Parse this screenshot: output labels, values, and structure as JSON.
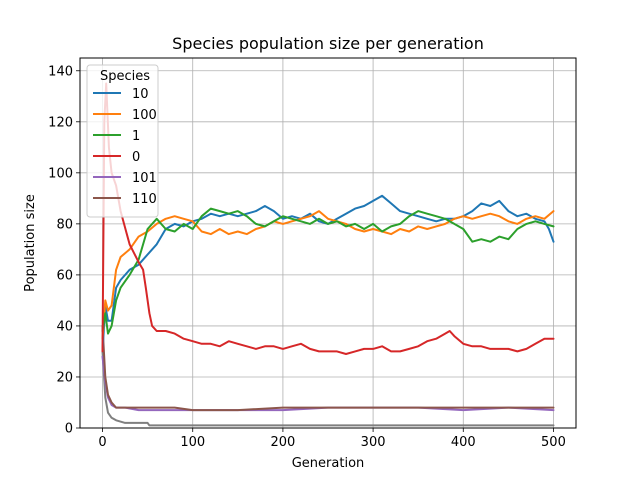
{
  "chart_data": {
    "type": "line",
    "title": "Species population size per generation",
    "xlabel": "Generation",
    "ylabel": "Population size",
    "xlim": [
      -25,
      525
    ],
    "ylim": [
      0,
      145
    ],
    "x_ticks": [
      0,
      100,
      200,
      300,
      400,
      500
    ],
    "y_ticks": [
      0,
      20,
      40,
      60,
      80,
      100,
      120,
      140
    ],
    "grid": true,
    "legend": {
      "title": "Species",
      "placement": "top-left"
    },
    "series": [
      {
        "name": "10",
        "color": "#1f77b4",
        "points": [
          [
            0,
            30
          ],
          [
            3,
            48
          ],
          [
            6,
            42
          ],
          [
            10,
            42
          ],
          [
            15,
            55
          ],
          [
            20,
            58
          ],
          [
            30,
            62
          ],
          [
            40,
            64
          ],
          [
            50,
            68
          ],
          [
            60,
            72
          ],
          [
            70,
            78
          ],
          [
            80,
            80
          ],
          [
            90,
            79
          ],
          [
            100,
            81
          ],
          [
            110,
            82
          ],
          [
            120,
            84
          ],
          [
            130,
            83
          ],
          [
            140,
            84
          ],
          [
            150,
            83
          ],
          [
            160,
            84
          ],
          [
            170,
            85
          ],
          [
            180,
            87
          ],
          [
            190,
            85
          ],
          [
            200,
            82
          ],
          [
            210,
            83
          ],
          [
            220,
            82
          ],
          [
            230,
            84
          ],
          [
            240,
            81
          ],
          [
            250,
            80
          ],
          [
            260,
            82
          ],
          [
            270,
            84
          ],
          [
            280,
            86
          ],
          [
            290,
            87
          ],
          [
            300,
            89
          ],
          [
            310,
            91
          ],
          [
            320,
            88
          ],
          [
            330,
            85
          ],
          [
            340,
            84
          ],
          [
            350,
            83
          ],
          [
            360,
            82
          ],
          [
            370,
            81
          ],
          [
            380,
            82
          ],
          [
            390,
            82
          ],
          [
            400,
            83
          ],
          [
            410,
            85
          ],
          [
            420,
            88
          ],
          [
            430,
            87
          ],
          [
            440,
            89
          ],
          [
            450,
            85
          ],
          [
            460,
            83
          ],
          [
            470,
            84
          ],
          [
            480,
            82
          ],
          [
            490,
            81
          ],
          [
            495,
            78
          ],
          [
            500,
            73
          ]
        ]
      },
      {
        "name": "100",
        "color": "#ff7f0e",
        "points": [
          [
            0,
            35
          ],
          [
            3,
            50
          ],
          [
            6,
            46
          ],
          [
            10,
            48
          ],
          [
            15,
            62
          ],
          [
            20,
            67
          ],
          [
            30,
            70
          ],
          [
            40,
            75
          ],
          [
            50,
            77
          ],
          [
            60,
            80
          ],
          [
            70,
            82
          ],
          [
            80,
            83
          ],
          [
            90,
            82
          ],
          [
            100,
            81
          ],
          [
            110,
            77
          ],
          [
            120,
            76
          ],
          [
            130,
            78
          ],
          [
            140,
            76
          ],
          [
            150,
            77
          ],
          [
            160,
            76
          ],
          [
            170,
            78
          ],
          [
            180,
            79
          ],
          [
            190,
            81
          ],
          [
            200,
            80
          ],
          [
            210,
            81
          ],
          [
            220,
            82
          ],
          [
            230,
            83
          ],
          [
            240,
            85
          ],
          [
            250,
            82
          ],
          [
            260,
            81
          ],
          [
            270,
            80
          ],
          [
            280,
            78
          ],
          [
            290,
            77
          ],
          [
            300,
            78
          ],
          [
            310,
            77
          ],
          [
            320,
            76
          ],
          [
            330,
            78
          ],
          [
            340,
            77
          ],
          [
            350,
            79
          ],
          [
            360,
            78
          ],
          [
            370,
            79
          ],
          [
            380,
            80
          ],
          [
            390,
            82
          ],
          [
            400,
            83
          ],
          [
            410,
            82
          ],
          [
            420,
            83
          ],
          [
            430,
            84
          ],
          [
            440,
            83
          ],
          [
            450,
            81
          ],
          [
            460,
            80
          ],
          [
            470,
            82
          ],
          [
            480,
            83
          ],
          [
            490,
            82
          ],
          [
            500,
            85
          ]
        ]
      },
      {
        "name": "1",
        "color": "#2ca02c",
        "points": [
          [
            0,
            38
          ],
          [
            3,
            45
          ],
          [
            6,
            37
          ],
          [
            10,
            40
          ],
          [
            15,
            50
          ],
          [
            20,
            55
          ],
          [
            30,
            60
          ],
          [
            40,
            66
          ],
          [
            50,
            78
          ],
          [
            60,
            82
          ],
          [
            70,
            78
          ],
          [
            80,
            77
          ],
          [
            90,
            80
          ],
          [
            100,
            78
          ],
          [
            110,
            83
          ],
          [
            120,
            86
          ],
          [
            130,
            85
          ],
          [
            140,
            84
          ],
          [
            150,
            85
          ],
          [
            160,
            83
          ],
          [
            170,
            80
          ],
          [
            180,
            79
          ],
          [
            190,
            81
          ],
          [
            200,
            83
          ],
          [
            210,
            82
          ],
          [
            220,
            81
          ],
          [
            230,
            80
          ],
          [
            240,
            82
          ],
          [
            250,
            80
          ],
          [
            260,
            81
          ],
          [
            270,
            79
          ],
          [
            280,
            80
          ],
          [
            290,
            78
          ],
          [
            300,
            80
          ],
          [
            310,
            77
          ],
          [
            320,
            79
          ],
          [
            330,
            80
          ],
          [
            340,
            83
          ],
          [
            350,
            85
          ],
          [
            360,
            84
          ],
          [
            370,
            83
          ],
          [
            380,
            82
          ],
          [
            390,
            80
          ],
          [
            400,
            78
          ],
          [
            410,
            73
          ],
          [
            420,
            74
          ],
          [
            430,
            73
          ],
          [
            440,
            75
          ],
          [
            450,
            74
          ],
          [
            460,
            78
          ],
          [
            470,
            80
          ],
          [
            480,
            81
          ],
          [
            490,
            80
          ],
          [
            500,
            79
          ]
        ]
      },
      {
        "name": "0",
        "color": "#d62728",
        "points": [
          [
            0,
            30
          ],
          [
            2,
            120
          ],
          [
            4,
            135
          ],
          [
            7,
            110
          ],
          [
            10,
            100
          ],
          [
            15,
            95
          ],
          [
            20,
            85
          ],
          [
            30,
            72
          ],
          [
            40,
            65
          ],
          [
            45,
            62
          ],
          [
            48,
            55
          ],
          [
            52,
            45
          ],
          [
            55,
            40
          ],
          [
            60,
            38
          ],
          [
            70,
            38
          ],
          [
            80,
            37
          ],
          [
            90,
            35
          ],
          [
            100,
            34
          ],
          [
            110,
            33
          ],
          [
            120,
            33
          ],
          [
            130,
            32
          ],
          [
            140,
            34
          ],
          [
            150,
            33
          ],
          [
            160,
            32
          ],
          [
            170,
            31
          ],
          [
            180,
            32
          ],
          [
            190,
            32
          ],
          [
            200,
            31
          ],
          [
            210,
            32
          ],
          [
            220,
            33
          ],
          [
            230,
            31
          ],
          [
            240,
            30
          ],
          [
            250,
            30
          ],
          [
            260,
            30
          ],
          [
            270,
            29
          ],
          [
            280,
            30
          ],
          [
            290,
            31
          ],
          [
            300,
            31
          ],
          [
            310,
            32
          ],
          [
            320,
            30
          ],
          [
            330,
            30
          ],
          [
            340,
            31
          ],
          [
            350,
            32
          ],
          [
            360,
            34
          ],
          [
            370,
            35
          ],
          [
            380,
            37
          ],
          [
            385,
            38
          ],
          [
            390,
            36
          ],
          [
            400,
            33
          ],
          [
            410,
            32
          ],
          [
            420,
            32
          ],
          [
            430,
            31
          ],
          [
            440,
            31
          ],
          [
            450,
            31
          ],
          [
            460,
            30
          ],
          [
            470,
            31
          ],
          [
            480,
            33
          ],
          [
            490,
            35
          ],
          [
            500,
            35
          ]
        ]
      },
      {
        "name": "101",
        "color": "#9467bd",
        "points": [
          [
            0,
            28
          ],
          [
            3,
            18
          ],
          [
            6,
            12
          ],
          [
            10,
            9
          ],
          [
            15,
            8
          ],
          [
            25,
            8
          ],
          [
            40,
            7
          ],
          [
            60,
            7
          ],
          [
            80,
            7
          ],
          [
            100,
            7
          ],
          [
            150,
            7
          ],
          [
            200,
            7
          ],
          [
            250,
            8
          ],
          [
            300,
            8
          ],
          [
            350,
            8
          ],
          [
            400,
            7
          ],
          [
            450,
            8
          ],
          [
            500,
            7
          ]
        ]
      },
      {
        "name": "110",
        "color": "#8c564b",
        "points": [
          [
            0,
            40
          ],
          [
            3,
            20
          ],
          [
            6,
            13
          ],
          [
            10,
            10
          ],
          [
            15,
            8
          ],
          [
            25,
            8
          ],
          [
            40,
            8
          ],
          [
            60,
            8
          ],
          [
            80,
            8
          ],
          [
            100,
            7
          ],
          [
            150,
            7
          ],
          [
            200,
            8
          ],
          [
            250,
            8
          ],
          [
            300,
            8
          ],
          [
            350,
            8
          ],
          [
            400,
            8
          ],
          [
            450,
            8
          ],
          [
            500,
            8
          ]
        ]
      },
      {
        "name": "",
        "color": "#7f7f7f",
        "points": [
          [
            0,
            30
          ],
          [
            3,
            12
          ],
          [
            6,
            6
          ],
          [
            10,
            4
          ],
          [
            15,
            3
          ],
          [
            25,
            2
          ],
          [
            45,
            2
          ],
          [
            50,
            2
          ],
          [
            52,
            1
          ],
          [
            100,
            1
          ],
          [
            150,
            1
          ],
          [
            200,
            1
          ],
          [
            250,
            1
          ],
          [
            300,
            1
          ],
          [
            350,
            1
          ],
          [
            400,
            1
          ],
          [
            450,
            1
          ],
          [
            500,
            1
          ]
        ]
      }
    ]
  }
}
